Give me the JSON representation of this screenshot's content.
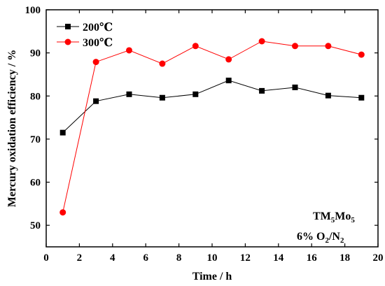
{
  "chart_data": {
    "type": "line",
    "xlabel": "Time / h",
    "ylabel": "Mercury oxidation efficiency / %",
    "xlim": [
      0,
      20
    ],
    "ylim": [
      45,
      100
    ],
    "xticks": [
      0,
      2,
      4,
      6,
      8,
      10,
      12,
      14,
      16,
      18,
      20
    ],
    "yticks": [
      50,
      60,
      70,
      80,
      90,
      100
    ],
    "grid": false,
    "legend_position": "top-left",
    "series": [
      {
        "name": "200℃",
        "color": "#000000",
        "marker": "square",
        "x": [
          1,
          3,
          5,
          7,
          9,
          11,
          13,
          15,
          17,
          19
        ],
        "values": [
          71.5,
          78.8,
          80.4,
          79.6,
          80.4,
          83.6,
          81.2,
          82.0,
          80.1,
          79.6
        ]
      },
      {
        "name": "300℃",
        "color": "#ff0000",
        "marker": "circle",
        "x": [
          1,
          3,
          5,
          7,
          9,
          11,
          13,
          15,
          17,
          19
        ],
        "values": [
          53.0,
          87.9,
          90.6,
          87.5,
          91.6,
          88.5,
          92.7,
          91.6,
          91.6,
          89.6
        ]
      }
    ],
    "annotations": {
      "catalyst": {
        "base": "TM",
        "sub1": "5",
        "mid": "Mo",
        "sub2": "5"
      },
      "atmosphere": {
        "pre": "6% O",
        "sub": "2",
        "post": "/N",
        "sub2": "2"
      }
    }
  }
}
